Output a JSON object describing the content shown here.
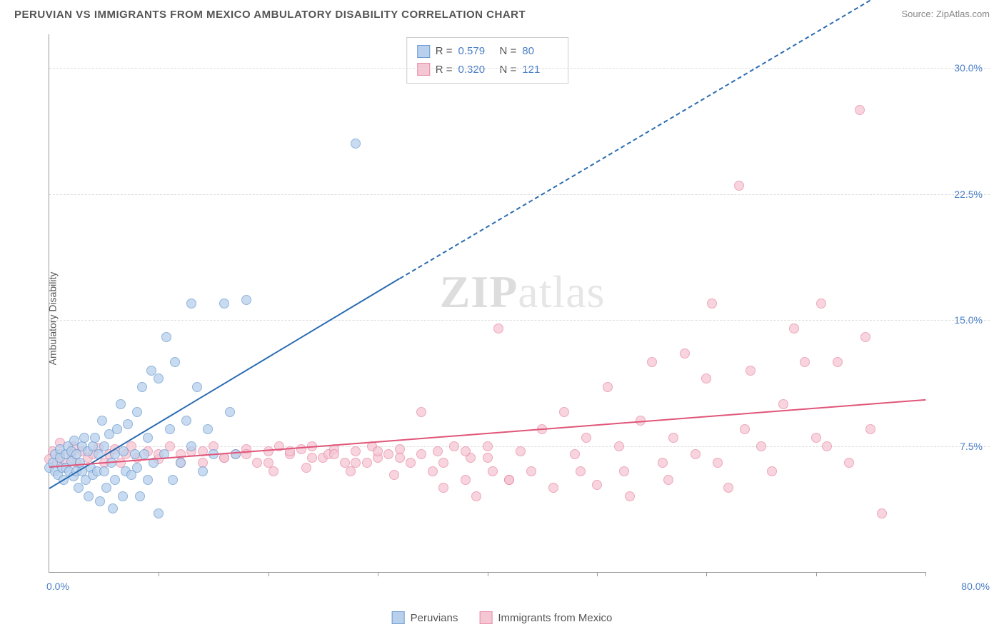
{
  "title": "PERUVIAN VS IMMIGRANTS FROM MEXICO AMBULATORY DISABILITY CORRELATION CHART",
  "source": "Source: ZipAtlas.com",
  "watermark_a": "ZIP",
  "watermark_b": "atlas",
  "y_axis_label": "Ambulatory Disability",
  "chart": {
    "type": "scatter",
    "xlim": [
      0,
      80
    ],
    "ylim": [
      0,
      32
    ],
    "x_ticks": [
      10,
      20,
      30,
      40,
      50,
      60,
      70,
      80
    ],
    "y_ticks": [
      7.5,
      15.0,
      22.5,
      30.0
    ],
    "y_tick_labels": [
      "7.5%",
      "15.0%",
      "22.5%",
      "30.0%"
    ],
    "x_start_label": "0.0%",
    "x_end_label": "80.0%",
    "grid_color": "#dddddd",
    "background_color": "#ffffff",
    "axis_color": "#999999",
    "tick_label_color": "#4a7ec7",
    "series": [
      {
        "name": "Peruvians",
        "R": "0.579",
        "N": "80",
        "color_fill": "#b8d0eb",
        "color_stroke": "#6b9bd1",
        "trend": {
          "color": "#2b6cb0",
          "x1": 0,
          "y1": 5.0,
          "x2": 32,
          "y2": 17.5,
          "dash_to_x": 80,
          "dash_to_y": 36
        },
        "points": [
          [
            0,
            6.2
          ],
          [
            0.3,
            6.5
          ],
          [
            0.5,
            6.0
          ],
          [
            0.5,
            7.0
          ],
          [
            0.8,
            5.8
          ],
          [
            1,
            6.8
          ],
          [
            1,
            7.3
          ],
          [
            1.2,
            6.2
          ],
          [
            1.3,
            5.5
          ],
          [
            1.5,
            7.0
          ],
          [
            1.5,
            6.2
          ],
          [
            1.7,
            7.5
          ],
          [
            1.8,
            6.0
          ],
          [
            2,
            6.6
          ],
          [
            2,
            7.2
          ],
          [
            2.2,
            5.7
          ],
          [
            2.3,
            7.8
          ],
          [
            2.5,
            6.0
          ],
          [
            2.5,
            7.0
          ],
          [
            2.7,
            5.0
          ],
          [
            2.8,
            6.5
          ],
          [
            3,
            7.5
          ],
          [
            3,
            6.0
          ],
          [
            3.2,
            8.0
          ],
          [
            3.3,
            5.5
          ],
          [
            3.5,
            7.2
          ],
          [
            3.6,
            4.5
          ],
          [
            3.8,
            6.2
          ],
          [
            4,
            7.5
          ],
          [
            4,
            5.8
          ],
          [
            4.2,
            8.0
          ],
          [
            4.4,
            6.0
          ],
          [
            4.5,
            7.0
          ],
          [
            4.6,
            4.2
          ],
          [
            4.8,
            9.0
          ],
          [
            5,
            6.0
          ],
          [
            5,
            7.5
          ],
          [
            5.2,
            5.0
          ],
          [
            5.5,
            8.2
          ],
          [
            5.7,
            6.5
          ],
          [
            5.8,
            3.8
          ],
          [
            6,
            7.0
          ],
          [
            6,
            5.5
          ],
          [
            6.2,
            8.5
          ],
          [
            6.5,
            10.0
          ],
          [
            6.7,
            4.5
          ],
          [
            6.8,
            7.2
          ],
          [
            7,
            6.0
          ],
          [
            7.2,
            8.8
          ],
          [
            7.5,
            5.8
          ],
          [
            7.8,
            7.0
          ],
          [
            8,
            9.5
          ],
          [
            8,
            6.2
          ],
          [
            8.3,
            4.5
          ],
          [
            8.5,
            11.0
          ],
          [
            8.7,
            7.0
          ],
          [
            9,
            5.5
          ],
          [
            9,
            8.0
          ],
          [
            9.3,
            12.0
          ],
          [
            9.5,
            6.5
          ],
          [
            10,
            3.5
          ],
          [
            10,
            11.5
          ],
          [
            10.5,
            7.0
          ],
          [
            10.7,
            14.0
          ],
          [
            11,
            8.5
          ],
          [
            11.3,
            5.5
          ],
          [
            11.5,
            12.5
          ],
          [
            12,
            6.5
          ],
          [
            12.5,
            9.0
          ],
          [
            13,
            16.0
          ],
          [
            13,
            7.5
          ],
          [
            13.5,
            11.0
          ],
          [
            14,
            6.0
          ],
          [
            14.5,
            8.5
          ],
          [
            15,
            7.0
          ],
          [
            16,
            16.0
          ],
          [
            16.5,
            9.5
          ],
          [
            17,
            7.0
          ],
          [
            18,
            16.2
          ],
          [
            28,
            25.5
          ]
        ]
      },
      {
        "name": "Immigrants from Mexico",
        "R": "0.320",
        "N": "121",
        "color_fill": "#f5c6d3",
        "color_stroke": "#e88ba6",
        "trend": {
          "color": "#e05578",
          "x1": 0,
          "y1": 6.3,
          "x2": 80,
          "y2": 10.3
        },
        "points": [
          [
            0,
            6.7
          ],
          [
            0.3,
            7.2
          ],
          [
            0.7,
            6.5
          ],
          [
            1,
            7.0
          ],
          [
            1,
            7.7
          ],
          [
            1.5,
            6.5
          ],
          [
            2,
            7.0
          ],
          [
            2.2,
            7.5
          ],
          [
            2.5,
            6.5
          ],
          [
            3,
            7.2
          ],
          [
            3.5,
            6.8
          ],
          [
            4,
            7.0
          ],
          [
            4.5,
            7.4
          ],
          [
            5,
            6.5
          ],
          [
            5.5,
            7.0
          ],
          [
            6,
            7.3
          ],
          [
            6.5,
            6.5
          ],
          [
            7,
            7.0
          ],
          [
            7.5,
            7.5
          ],
          [
            8,
            6.8
          ],
          [
            9,
            7.2
          ],
          [
            10,
            6.7
          ],
          [
            11,
            7.5
          ],
          [
            12,
            7.0
          ],
          [
            13,
            7.2
          ],
          [
            14,
            6.5
          ],
          [
            15,
            7.5
          ],
          [
            16,
            6.8
          ],
          [
            17,
            7.0
          ],
          [
            18,
            7.3
          ],
          [
            19,
            6.5
          ],
          [
            20,
            7.2
          ],
          [
            20.5,
            6.0
          ],
          [
            21,
            7.5
          ],
          [
            22,
            7.0
          ],
          [
            23,
            7.3
          ],
          [
            23.5,
            6.2
          ],
          [
            24,
            7.5
          ],
          [
            25,
            6.8
          ],
          [
            25.5,
            7.0
          ],
          [
            26,
            7.3
          ],
          [
            27,
            6.5
          ],
          [
            27.5,
            6.0
          ],
          [
            28,
            7.2
          ],
          [
            29,
            6.5
          ],
          [
            29.5,
            7.5
          ],
          [
            30,
            6.8
          ],
          [
            31,
            7.0
          ],
          [
            31.5,
            5.8
          ],
          [
            32,
            7.3
          ],
          [
            33,
            6.5
          ],
          [
            34,
            9.5
          ],
          [
            35,
            6.0
          ],
          [
            35.5,
            7.2
          ],
          [
            36,
            5.0
          ],
          [
            37,
            7.5
          ],
          [
            38,
            5.5
          ],
          [
            38.5,
            6.8
          ],
          [
            39,
            4.5
          ],
          [
            40,
            7.5
          ],
          [
            40.5,
            6.0
          ],
          [
            41,
            14.5
          ],
          [
            42,
            5.5
          ],
          [
            43,
            7.2
          ],
          [
            44,
            6.0
          ],
          [
            45,
            8.5
          ],
          [
            46,
            5.0
          ],
          [
            47,
            9.5
          ],
          [
            48,
            7.0
          ],
          [
            48.5,
            6.0
          ],
          [
            49,
            8.0
          ],
          [
            50,
            5.2
          ],
          [
            51,
            11.0
          ],
          [
            52,
            7.5
          ],
          [
            52.5,
            6.0
          ],
          [
            53,
            4.5
          ],
          [
            54,
            9.0
          ],
          [
            55,
            12.5
          ],
          [
            56,
            6.5
          ],
          [
            56.5,
            5.5
          ],
          [
            57,
            8.0
          ],
          [
            58,
            13.0
          ],
          [
            59,
            7.0
          ],
          [
            60,
            11.5
          ],
          [
            60.5,
            16.0
          ],
          [
            61,
            6.5
          ],
          [
            62,
            5.0
          ],
          [
            63,
            23.0
          ],
          [
            63.5,
            8.5
          ],
          [
            64,
            12.0
          ],
          [
            65,
            7.5
          ],
          [
            66,
            6.0
          ],
          [
            67,
            10.0
          ],
          [
            68,
            14.5
          ],
          [
            69,
            12.5
          ],
          [
            70,
            8.0
          ],
          [
            70.5,
            16.0
          ],
          [
            71,
            7.5
          ],
          [
            72,
            12.5
          ],
          [
            73,
            6.5
          ],
          [
            74,
            27.5
          ],
          [
            74.5,
            14.0
          ],
          [
            75,
            8.5
          ],
          [
            76,
            3.5
          ],
          [
            10,
            7.0
          ],
          [
            12,
            6.5
          ],
          [
            14,
            7.2
          ],
          [
            16,
            6.8
          ],
          [
            18,
            7.0
          ],
          [
            20,
            6.5
          ],
          [
            22,
            7.2
          ],
          [
            24,
            6.8
          ],
          [
            26,
            7.0
          ],
          [
            28,
            6.5
          ],
          [
            30,
            7.2
          ],
          [
            32,
            6.8
          ],
          [
            34,
            7.0
          ],
          [
            36,
            6.5
          ],
          [
            38,
            7.2
          ],
          [
            40,
            6.8
          ],
          [
            42,
            5.5
          ]
        ]
      }
    ]
  },
  "bottom_legend": [
    {
      "label": "Peruvians",
      "fill": "#b8d0eb",
      "stroke": "#6b9bd1"
    },
    {
      "label": "Immigrants from Mexico",
      "fill": "#f5c6d3",
      "stroke": "#e88ba6"
    }
  ]
}
